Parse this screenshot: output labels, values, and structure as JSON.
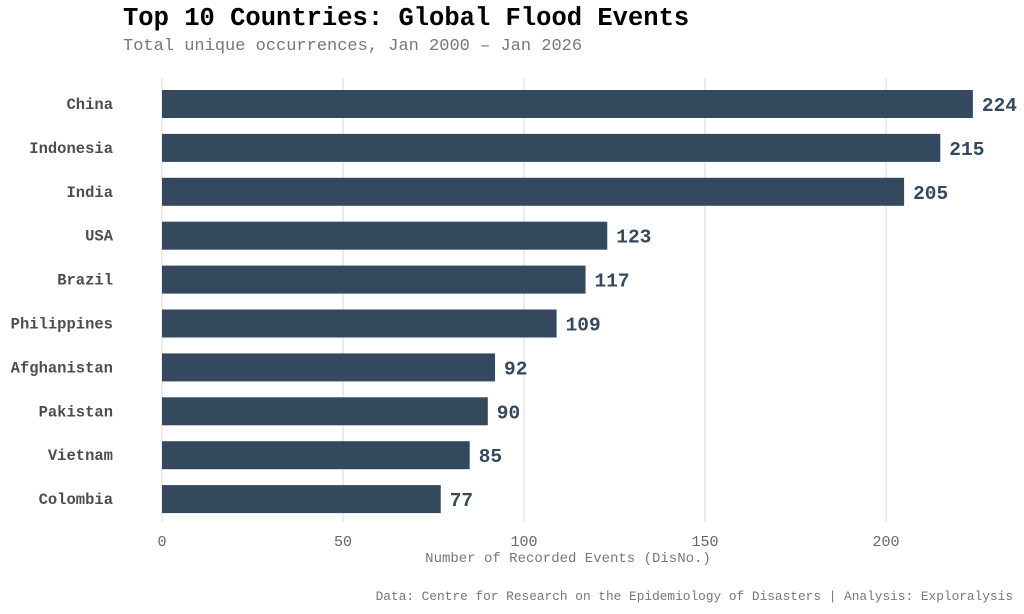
{
  "chart_data": {
    "type": "bar",
    "orientation": "horizontal",
    "title": "Top 10 Countries: Global Flood Events",
    "subtitle": "Total unique occurrences, Jan 2000 – Jan 2026",
    "categories": [
      "China",
      "Indonesia",
      "India",
      "USA",
      "Brazil",
      "Philippines",
      "Afghanistan",
      "Pakistan",
      "Vietnam",
      "Colombia"
    ],
    "values": [
      224,
      215,
      205,
      123,
      117,
      109,
      92,
      90,
      85,
      77
    ],
    "xlabel": "Number of Recorded Events (DisNo.)",
    "ylabel": "",
    "xlim": [
      0,
      224
    ],
    "xticks": [
      0,
      50,
      100,
      150,
      200
    ],
    "grid": "vertical",
    "bar_color": "#34495e",
    "caption": "Data: Centre for Research on the Epidemiology of Disasters | Analysis: Exploralysis"
  }
}
